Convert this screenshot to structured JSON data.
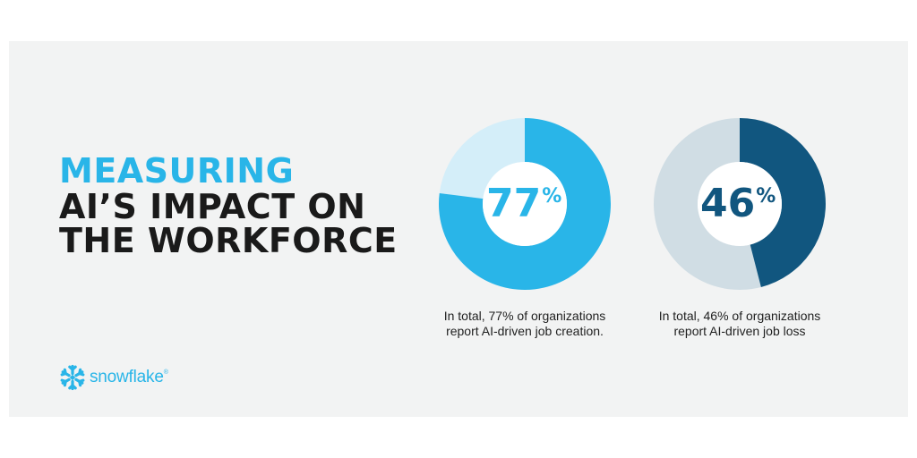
{
  "headline": {
    "line1": "MEASURING",
    "line2": "AI’S IMPACT ON",
    "line3": "THE WORKFORCE"
  },
  "colors": {
    "accent": "#29b5e8",
    "accent_light": "#d4eef9",
    "navy": "#11567f",
    "grey_light": "#d0dde4",
    "background": "#f2f3f3",
    "text": "#1a1a1a"
  },
  "chart_data": [
    {
      "type": "pie",
      "donut": true,
      "value": 77,
      "value_label": "77",
      "unit": "%",
      "color": "#29b5e8",
      "remainder_color": "#d4eef9",
      "caption_line1": "In total, 77% of organizations",
      "caption_line2": "report AI-driven job creation."
    },
    {
      "type": "pie",
      "donut": true,
      "value": 46,
      "value_label": "46",
      "unit": "%",
      "color": "#11567f",
      "remainder_color": "#d0dde4",
      "caption_line1": "In total, 46% of organizations",
      "caption_line2": "report AI-driven job loss"
    }
  ],
  "logo": {
    "icon": "snowflake-icon",
    "text": "snowflake",
    "registered": "®"
  }
}
